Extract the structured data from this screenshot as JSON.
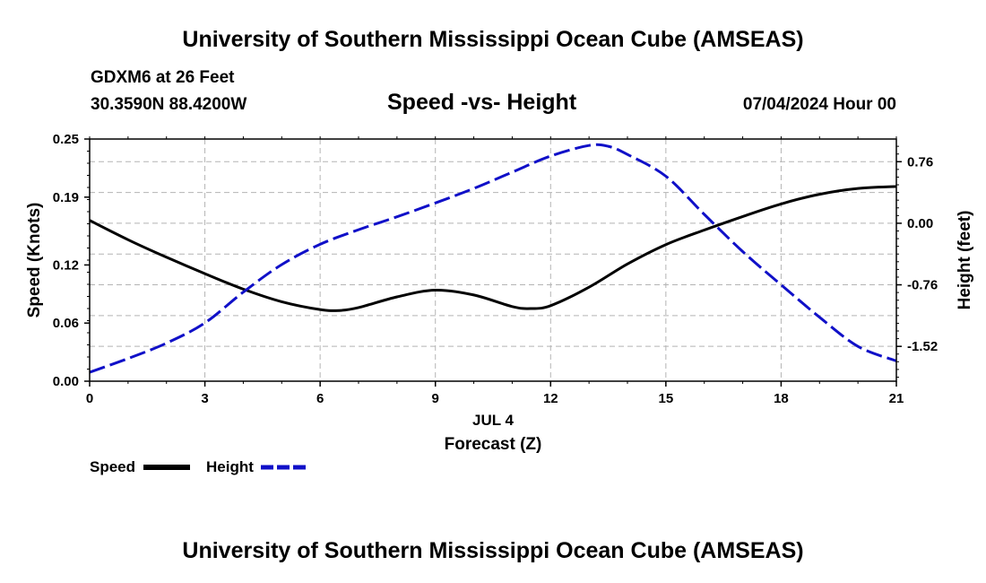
{
  "header": {
    "title": "University of Southern Mississippi Ocean Cube (AMSEAS)",
    "station": "GDXM6 at 26 Feet",
    "coords": "30.3590N  88.4200W",
    "subtitle": "Speed -vs- Height",
    "datetime": "07/04/2024 Hour 00"
  },
  "footer": {
    "title": "University of Southern Mississippi Ocean Cube (AMSEAS)"
  },
  "colors": {
    "speed": "#000000",
    "height": "#1010c8",
    "grid": "#b4b4b4"
  },
  "chart_data": {
    "type": "line",
    "title": "Speed -vs- Height",
    "xlabel": "Forecast (Z)",
    "xsublabel": "JUL 4",
    "ylabel": "Speed (Knots)",
    "y2label": "Height (feet)",
    "xlim": [
      0,
      21
    ],
    "ylim": [
      0,
      0.25
    ],
    "y2lim": [
      -1.95,
      1.04
    ],
    "xticks": [
      "0",
      "3",
      "6",
      "9",
      "12",
      "15",
      "18",
      "21"
    ],
    "yticks": [
      "0.00",
      "0.06",
      "0.12",
      "0.19",
      "0.25"
    ],
    "y2ticks": [
      "0.76",
      "0.00",
      "-0.76",
      "-1.52"
    ],
    "grid": true,
    "legend": "bottom-left",
    "series": [
      {
        "name": "Speed",
        "axis": "left",
        "style": "solid",
        "x": [
          0,
          1,
          2,
          3,
          4,
          5,
          6,
          6.5,
          7,
          8,
          9,
          10,
          11,
          11.5,
          12,
          13,
          14,
          15,
          16,
          17,
          18,
          19,
          20,
          21
        ],
        "y": [
          0.166,
          0.146,
          0.128,
          0.111,
          0.095,
          0.082,
          0.074,
          0.073,
          0.076,
          0.087,
          0.094,
          0.089,
          0.077,
          0.075,
          0.078,
          0.097,
          0.121,
          0.141,
          0.156,
          0.17,
          0.183,
          0.193,
          0.199,
          0.201
        ]
      },
      {
        "name": "Height",
        "axis": "right",
        "style": "dashed",
        "x": [
          0,
          1,
          2,
          3,
          4,
          5,
          6,
          7,
          8,
          9,
          10,
          11,
          12,
          13,
          13.5,
          14,
          15,
          16,
          17,
          18,
          19,
          20,
          21
        ],
        "y": [
          -1.84,
          -1.67,
          -1.48,
          -1.23,
          -0.85,
          -0.51,
          -0.26,
          -0.08,
          0.08,
          0.25,
          0.43,
          0.63,
          0.83,
          0.96,
          0.95,
          0.85,
          0.58,
          0.11,
          -0.35,
          -0.76,
          -1.16,
          -1.52,
          -1.7
        ]
      }
    ]
  }
}
